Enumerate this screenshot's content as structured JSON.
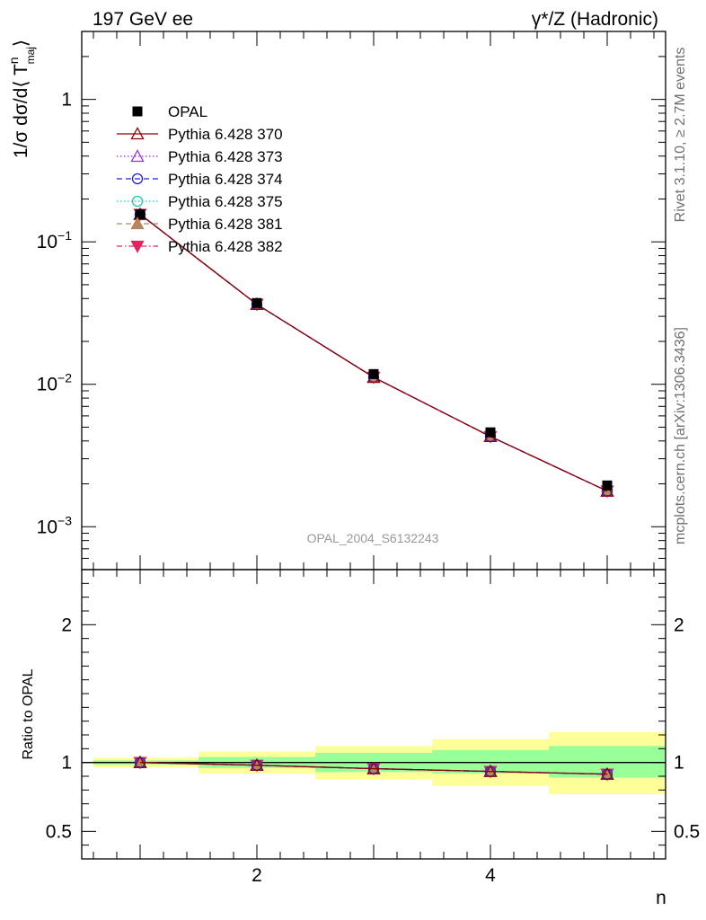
{
  "header": {
    "left": "197 GeV ee",
    "right": "γ*/Z (Hadronic)"
  },
  "side_labels": {
    "rivet": "Rivet 3.1.10, ≥ 2.7M events",
    "mcplots": "mcplots.cern.ch [arXiv:1306.3436]"
  },
  "watermark": "OPAL_2004_S6132243",
  "legend": [
    {
      "label": "OPAL",
      "marker": "square-filled",
      "color": "#000000",
      "line": "none"
    },
    {
      "label": "Pythia 6.428 370",
      "marker": "triangle-up-open",
      "color": "#8b0000",
      "line": "solid"
    },
    {
      "label": "Pythia 6.428 373",
      "marker": "triangle-up-open",
      "color": "#9932cc",
      "line": "dotted"
    },
    {
      "label": "Pythia 6.428 374",
      "marker": "circle-open",
      "color": "#2222dd",
      "line": "dashed"
    },
    {
      "label": "Pythia 6.428 375",
      "marker": "circle-open",
      "color": "#20c8b0",
      "line": "dotted"
    },
    {
      "label": "Pythia 6.428 381",
      "marker": "triangle-up-filled",
      "color": "#b8865a",
      "line": "dashed"
    },
    {
      "label": "Pythia 6.428 382",
      "marker": "triangle-down-filled",
      "color": "#e0245e",
      "line": "dashdot"
    }
  ],
  "chart_data": [
    {
      "type": "scatter",
      "panel": "main",
      "ylabel": "1/σ dσ/d⟨ T",
      "ylabel_sup": "n",
      "ylabel_sub": "maj",
      "ylabel_end": "⟩",
      "yscale": "log",
      "xlim": [
        0.5,
        5.5
      ],
      "ylim": [
        0.0005,
        3.0
      ],
      "yticks": [
        {
          "value": 1,
          "base": "1",
          "exp": ""
        },
        {
          "value": 0.1,
          "base": "10",
          "exp": "−1"
        },
        {
          "value": 0.01,
          "base": "10",
          "exp": "−2"
        },
        {
          "value": 0.001,
          "base": "10",
          "exp": "−3"
        }
      ],
      "x": [
        1,
        2,
        3,
        4,
        5
      ],
      "series": [
        {
          "name": "OPAL",
          "values": [
            0.156,
            0.0372,
            0.0118,
            0.0046,
            0.00195
          ]
        },
        {
          "name": "Pythia 6.428 370",
          "values": [
            0.156,
            0.0364,
            0.0112,
            0.0043,
            0.00178
          ]
        },
        {
          "name": "Pythia 6.428 373",
          "values": [
            0.156,
            0.0364,
            0.0112,
            0.0043,
            0.00178
          ]
        },
        {
          "name": "Pythia 6.428 374",
          "values": [
            0.156,
            0.0364,
            0.0112,
            0.0043,
            0.00178
          ]
        },
        {
          "name": "Pythia 6.428 375",
          "values": [
            0.156,
            0.0364,
            0.0112,
            0.0043,
            0.00178
          ]
        },
        {
          "name": "Pythia 6.428 381",
          "values": [
            0.156,
            0.0364,
            0.0112,
            0.0043,
            0.00178
          ]
        },
        {
          "name": "Pythia 6.428 382",
          "values": [
            0.156,
            0.0364,
            0.0112,
            0.0043,
            0.00178
          ]
        }
      ]
    },
    {
      "type": "line",
      "panel": "ratio",
      "ylabel": "Ratio to OPAL",
      "xlabel": "n",
      "xlim": [
        0.5,
        5.5
      ],
      "ylim": [
        0.3,
        2.4
      ],
      "xticks": [
        2,
        4
      ],
      "yticks": [
        0.5,
        1,
        2
      ],
      "x": [
        1,
        2,
        3,
        4,
        5
      ],
      "band_bins": [
        [
          0.6,
          1.5
        ],
        [
          1.5,
          2.5
        ],
        [
          2.5,
          3.5
        ],
        [
          3.5,
          4.5
        ],
        [
          4.5,
          5.5
        ]
      ],
      "band_stat": [
        [
          0.985,
          1.015
        ],
        [
          0.96,
          1.04
        ],
        [
          0.93,
          1.07
        ],
        [
          0.92,
          1.09
        ],
        [
          0.89,
          1.12
        ]
      ],
      "band_total": [
        [
          0.965,
          1.035
        ],
        [
          0.92,
          1.08
        ],
        [
          0.88,
          1.12
        ],
        [
          0.83,
          1.17
        ],
        [
          0.77,
          1.22
        ]
      ],
      "series": [
        {
          "name": "Pythia 6.428 370",
          "values": [
            1.0,
            0.98,
            0.955,
            0.935,
            0.915
          ]
        },
        {
          "name": "Pythia 6.428 373",
          "values": [
            1.0,
            0.98,
            0.955,
            0.935,
            0.915
          ]
        },
        {
          "name": "Pythia 6.428 374",
          "values": [
            1.0,
            0.98,
            0.955,
            0.935,
            0.915
          ]
        },
        {
          "name": "Pythia 6.428 375",
          "values": [
            1.0,
            0.98,
            0.955,
            0.935,
            0.915
          ]
        },
        {
          "name": "Pythia 6.428 381",
          "values": [
            1.0,
            0.98,
            0.955,
            0.935,
            0.915
          ]
        },
        {
          "name": "Pythia 6.428 382",
          "values": [
            1.0,
            0.98,
            0.955,
            0.935,
            0.915
          ]
        }
      ]
    }
  ],
  "colors": {
    "band_total": "#ffff99",
    "band_stat": "#99ff99"
  }
}
